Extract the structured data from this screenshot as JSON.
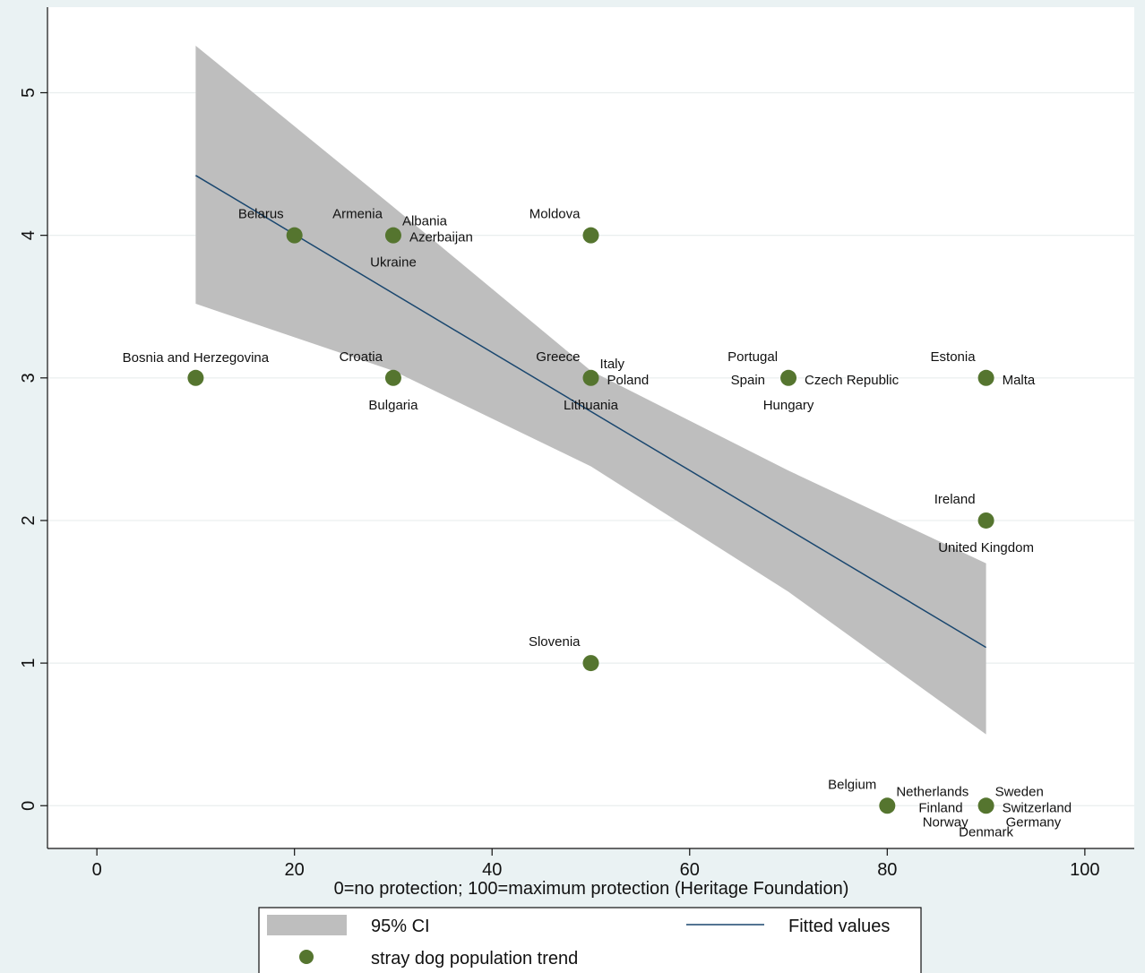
{
  "chart_data": {
    "type": "scatter",
    "title": "",
    "xlabel": "0=no protection; 100=maximum protection (Heritage Foundation)",
    "ylabel": "",
    "xlim": [
      -5,
      105
    ],
    "ylim": [
      -0.3,
      5.6
    ],
    "xticks": [
      0,
      20,
      40,
      60,
      80,
      100
    ],
    "yticks": [
      0,
      1,
      2,
      3,
      4,
      5
    ],
    "grid": true,
    "colors": {
      "background": "#eaf2f3",
      "plot_area": "#ffffff",
      "gridline": "#e9eeee",
      "ci_band": "#bebebe",
      "fitted_line": "#1a476f",
      "points": "#55752f"
    },
    "points": [
      {
        "x": 10,
        "y": 3
      },
      {
        "x": 20,
        "y": 4
      },
      {
        "x": 30,
        "y": 4
      },
      {
        "x": 30,
        "y": 3
      },
      {
        "x": 50,
        "y": 4
      },
      {
        "x": 50,
        "y": 3
      },
      {
        "x": 50,
        "y": 1
      },
      {
        "x": 70,
        "y": 3
      },
      {
        "x": 90,
        "y": 3
      },
      {
        "x": 90,
        "y": 2
      },
      {
        "x": 80,
        "y": 0
      },
      {
        "x": 90,
        "y": 0
      }
    ],
    "labels": [
      {
        "text": "Bosnia and Herzegovina",
        "x": 10,
        "y": 3,
        "pos": "above"
      },
      {
        "text": "Belarus",
        "x": 20,
        "y": 4,
        "pos": "above-left"
      },
      {
        "text": "Armenia",
        "x": 30,
        "y": 4,
        "pos": "above-left"
      },
      {
        "text": "Albania",
        "x": 30,
        "y": 4,
        "pos": "above-right"
      },
      {
        "text": "Azerbaijan",
        "x": 30,
        "y": 4,
        "pos": "right"
      },
      {
        "text": "Ukraine",
        "x": 30,
        "y": 4,
        "pos": "below"
      },
      {
        "text": "Moldova",
        "x": 50,
        "y": 4,
        "pos": "above-left"
      },
      {
        "text": "Croatia",
        "x": 30,
        "y": 3,
        "pos": "above-left"
      },
      {
        "text": "Bulgaria",
        "x": 30,
        "y": 3,
        "pos": "below"
      },
      {
        "text": "Greece",
        "x": 50,
        "y": 3,
        "pos": "above-left"
      },
      {
        "text": "Italy",
        "x": 50,
        "y": 3,
        "pos": "above-right"
      },
      {
        "text": "Poland",
        "x": 50,
        "y": 3,
        "pos": "right"
      },
      {
        "text": "Lithuania",
        "x": 50,
        "y": 3,
        "pos": "below"
      },
      {
        "text": "Portugal",
        "x": 70,
        "y": 3,
        "pos": "above-left"
      },
      {
        "text": "Spain",
        "x": 70,
        "y": 3,
        "pos": "left"
      },
      {
        "text": "Czech Republic",
        "x": 70,
        "y": 3,
        "pos": "right"
      },
      {
        "text": "Hungary",
        "x": 70,
        "y": 3,
        "pos": "below"
      },
      {
        "text": "Estonia",
        "x": 90,
        "y": 3,
        "pos": "above-left"
      },
      {
        "text": "Malta",
        "x": 90,
        "y": 3,
        "pos": "right"
      },
      {
        "text": "Ireland",
        "x": 90,
        "y": 2,
        "pos": "above-left"
      },
      {
        "text": "United Kingdom",
        "x": 90,
        "y": 2,
        "pos": "below"
      },
      {
        "text": "Slovenia",
        "x": 50,
        "y": 1,
        "pos": "above-left"
      },
      {
        "text": "Belgium",
        "x": 80,
        "y": 0,
        "pos": "above-left"
      },
      {
        "text": "Netherlands",
        "x": 80,
        "y": 0,
        "pos": "above-right"
      },
      {
        "text": "Sweden",
        "x": 90,
        "y": 0,
        "pos": "above-right"
      },
      {
        "text": "Finland",
        "x": 90,
        "y": 0,
        "pos": "left"
      },
      {
        "text": "Switzerland",
        "x": 90,
        "y": 0,
        "pos": "right"
      },
      {
        "text": "Norway",
        "x": 90,
        "y": 0,
        "pos": "below-left"
      },
      {
        "text": "Germany",
        "x": 90,
        "y": 0,
        "pos": "below-right"
      },
      {
        "text": "Denmark",
        "x": 90,
        "y": 0,
        "pos": "below"
      }
    ],
    "fitted_line": [
      {
        "x": 10,
        "y": 4.42
      },
      {
        "x": 90,
        "y": 1.11
      }
    ],
    "ci_band": {
      "upper": [
        {
          "x": 10,
          "y": 5.33
        },
        {
          "x": 30,
          "y": 4.2
        },
        {
          "x": 50,
          "y": 3.05
        },
        {
          "x": 70,
          "y": 2.35
        },
        {
          "x": 90,
          "y": 1.7
        }
      ],
      "lower": [
        {
          "x": 10,
          "y": 3.52
        },
        {
          "x": 30,
          "y": 3.05
        },
        {
          "x": 50,
          "y": 2.38
        },
        {
          "x": 70,
          "y": 1.5
        },
        {
          "x": 90,
          "y": 0.5
        }
      ]
    },
    "legend": {
      "placement": "bottom",
      "items": [
        {
          "label": "95% CI",
          "kind": "band"
        },
        {
          "label": "Fitted values",
          "kind": "line"
        },
        {
          "label": "stray dog population trend",
          "kind": "marker"
        }
      ]
    }
  }
}
